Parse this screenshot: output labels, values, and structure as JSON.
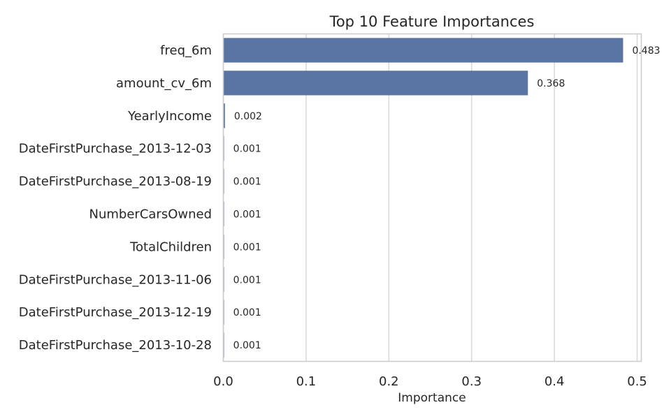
{
  "chart_data": {
    "type": "bar",
    "orientation": "horizontal",
    "title": "Top 10 Feature Importances",
    "xlabel": "Importance",
    "ylabel": "",
    "xlim": [
      0,
      0.505
    ],
    "xticks": [
      "0.0",
      "0.1",
      "0.2",
      "0.3",
      "0.4",
      "0.5"
    ],
    "grid": true,
    "bar_color": "#5975a4",
    "categories": [
      "freq_6m",
      "amount_cv_6m",
      "YearlyIncome",
      "DateFirstPurchase_2013-12-03",
      "DateFirstPurchase_2013-08-19",
      "NumberCarsOwned",
      "TotalChildren",
      "DateFirstPurchase_2013-11-06",
      "DateFirstPurchase_2013-12-19",
      "DateFirstPurchase_2013-10-28"
    ],
    "values": [
      0.483,
      0.368,
      0.002,
      0.001,
      0.001,
      0.001,
      0.001,
      0.001,
      0.001,
      0.001
    ],
    "value_labels": [
      "0.483",
      "0.368",
      "0.002",
      "0.001",
      "0.001",
      "0.001",
      "0.001",
      "0.001",
      "0.001",
      "0.001"
    ]
  }
}
